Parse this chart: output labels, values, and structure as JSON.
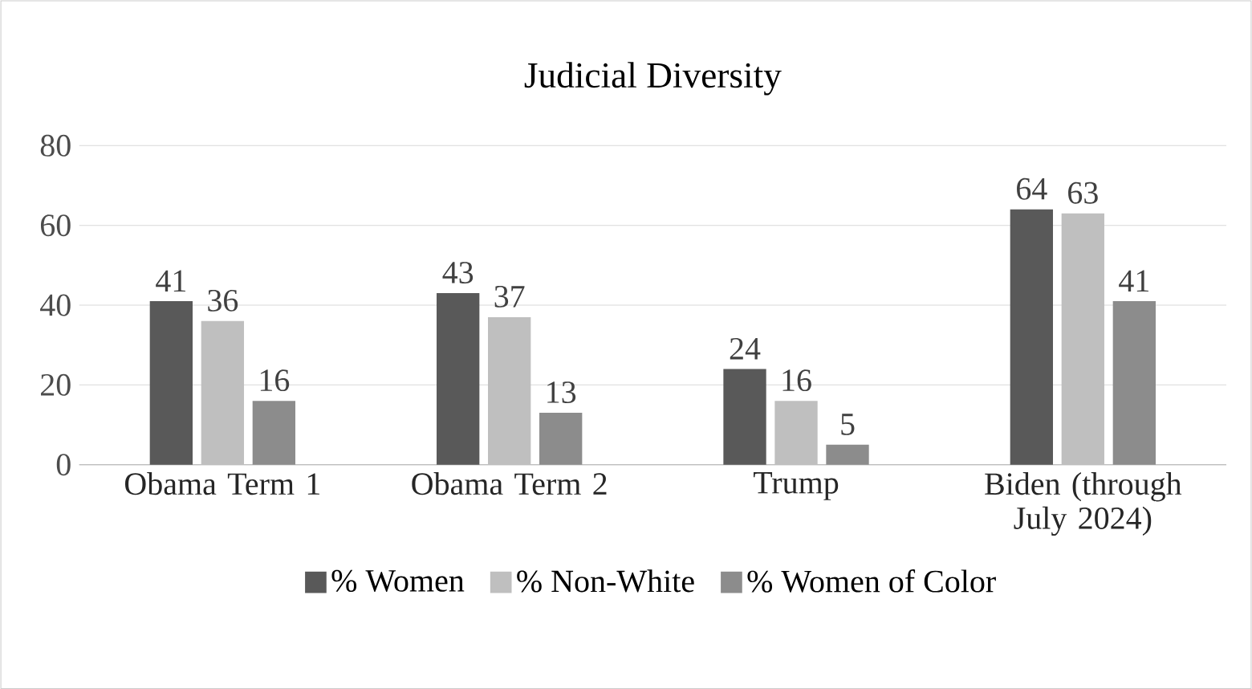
{
  "chart_data": {
    "type": "bar",
    "title": "Judicial Diversity",
    "categories": [
      "Obama Term 1",
      "Obama Term 2",
      "Trump",
      "Biden (through July 2024)"
    ],
    "series": [
      {
        "name": "% Women",
        "color": "#595959",
        "values": [
          41,
          43,
          24,
          64
        ]
      },
      {
        "name": "% Non-White",
        "color": "#bfbfbf",
        "values": [
          36,
          37,
          16,
          63
        ]
      },
      {
        "name": "% Women of Color",
        "color": "#8c8c8c",
        "values": [
          16,
          13,
          5,
          41
        ]
      }
    ],
    "ylim": [
      0,
      80
    ],
    "yticks": [
      0,
      20,
      40,
      60,
      80
    ],
    "grid": "y",
    "legend": "bottom",
    "data_labels": true
  }
}
